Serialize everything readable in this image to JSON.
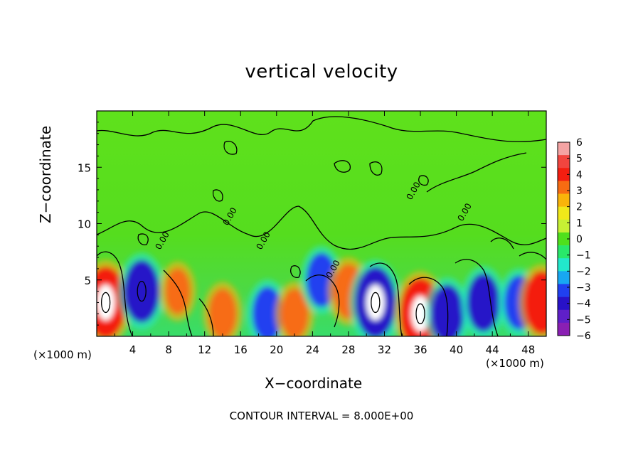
{
  "chart_data": {
    "type": "heatmap",
    "title": "vertical velocity",
    "xlabel": "X−coordinate",
    "ylabel": "Z−coordinate",
    "x_unit_label": "(×1000 m)",
    "footnote": "CONTOUR INTERVAL = 8.000E+00",
    "xlim": [
      0,
      50
    ],
    "ylim": [
      0,
      20
    ],
    "x_ticks": [
      "4",
      "8",
      "12",
      "16",
      "20",
      "24",
      "28",
      "32",
      "36",
      "40",
      "44",
      "48"
    ],
    "y_ticks": [
      "5",
      "10",
      "15"
    ],
    "contour_labels": [
      "0.00",
      "0.00",
      "0.00",
      "0.00",
      "0.00",
      "0.00"
    ],
    "colorbar": {
      "ticks": [
        "6",
        "5",
        "4",
        "3",
        "2",
        "1",
        "0",
        "−1",
        "−2",
        "−3",
        "−4",
        "−5",
        "−6"
      ],
      "colors": [
        "#f4a3a3",
        "#f2453f",
        "#f41e10",
        "#f76c12",
        "#f9b40a",
        "#f0e81a",
        "#c6f034",
        "#4fe01c",
        "#29e86a",
        "#22e8cc",
        "#18a7f2",
        "#2040f0",
        "#2812c8",
        "#5f1fc8",
        "#8a1fb3"
      ]
    },
    "features": [
      {
        "x": 1,
        "z": 3,
        "w": 8
      },
      {
        "x": 5,
        "z": 4,
        "w": -6
      },
      {
        "x": 9,
        "z": 4,
        "w": 2
      },
      {
        "x": 14,
        "z": 2,
        "w": 3
      },
      {
        "x": 19,
        "z": 2,
        "w": -4
      },
      {
        "x": 22,
        "z": 2,
        "w": 3
      },
      {
        "x": 25,
        "z": 5,
        "w": -4
      },
      {
        "x": 28,
        "z": 4,
        "w": 4
      },
      {
        "x": 31,
        "z": 3,
        "w": -8
      },
      {
        "x": 36,
        "z": 2,
        "w": 8
      },
      {
        "x": 39,
        "z": 2,
        "w": -5
      },
      {
        "x": 43,
        "z": 3,
        "w": -5
      },
      {
        "x": 47,
        "z": 3,
        "w": -4
      },
      {
        "x": 49.5,
        "z": 3,
        "w": 6
      }
    ]
  }
}
